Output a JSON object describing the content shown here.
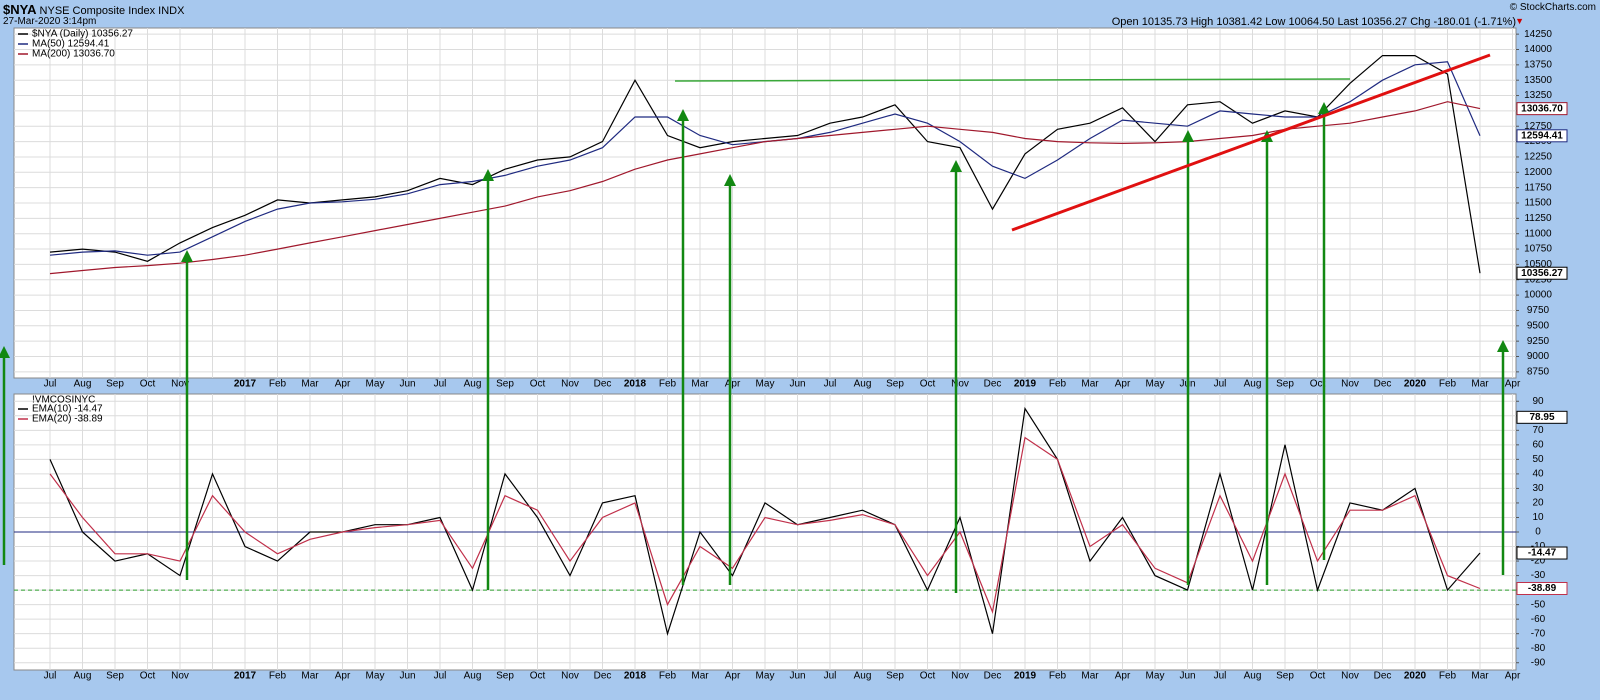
{
  "header": {
    "symbol": "$NYA",
    "name": "NYSE Composite Index INDX",
    "timestamp": "27-Mar-2020 3:14pm",
    "quote": "Open 10135.73 High 10381.42 Low 10064.50 Last 10356.27 Chg -180.01 (-1.71%)",
    "copyright": "© StockCharts.com"
  },
  "chart_data": [
    {
      "type": "line",
      "categories": [
        "Jul",
        "Aug",
        "Sep",
        "Oct",
        "Nov",
        null,
        "2017",
        "Feb",
        "Mar",
        "Apr",
        "May",
        "Jun",
        "Jul",
        "Aug",
        "Sep",
        "Oct",
        "Nov",
        "Dec",
        "2018",
        "Feb",
        "Mar",
        "Apr",
        "May",
        "Jun",
        "Jul",
        "Aug",
        "Sep",
        "Oct",
        "Nov",
        "Dec",
        "2019",
        "Feb",
        "Mar",
        "Apr",
        "May",
        "Jun",
        "Jul",
        "Aug",
        "Sep",
        "Oct",
        "Nov",
        "Dec",
        "2020",
        "Feb",
        "Mar",
        "Apr"
      ],
      "series": [
        {
          "name": "$NYA (Daily) 10356.27",
          "color": "#000000",
          "end_label": {
            "value": 10356.27,
            "label": "10356.27"
          },
          "values": [
            10700,
            10750,
            10700,
            10550,
            10850,
            11100,
            11300,
            11550,
            11500,
            11550,
            11600,
            11700,
            11900,
            11800,
            12050,
            12200,
            12250,
            12500,
            13500,
            12600,
            12400,
            12500,
            12550,
            12600,
            12800,
            12900,
            13100,
            12500,
            12400,
            11400,
            12300,
            12700,
            12800,
            13050,
            12500,
            13100,
            13150,
            12800,
            13000,
            12900,
            13450,
            13900,
            13900,
            13600,
            10356.27,
            null
          ]
        },
        {
          "name": "MA(50) 12594.41",
          "color": "#1f2a80",
          "end_label": {
            "value": 12594.41,
            "label": "12594.41"
          },
          "values": [
            10650,
            10700,
            10720,
            10650,
            10700,
            10950,
            11200,
            11400,
            11500,
            11520,
            11560,
            11650,
            11800,
            11850,
            11950,
            12100,
            12200,
            12400,
            12900,
            12900,
            12600,
            12450,
            12500,
            12550,
            12650,
            12800,
            12950,
            12800,
            12500,
            12100,
            11900,
            12200,
            12550,
            12850,
            12800,
            12750,
            13000,
            12950,
            12900,
            12900,
            13150,
            13500,
            13750,
            13800,
            12594.41,
            null
          ]
        },
        {
          "name": "MA(200) 13036.70",
          "color": "#a0182c",
          "end_label": {
            "value": 13036.7,
            "label": "13036.70"
          },
          "values": [
            10350,
            10400,
            10450,
            10480,
            10520,
            10580,
            10650,
            10750,
            10850,
            10950,
            11050,
            11150,
            11250,
            11350,
            11450,
            11600,
            11700,
            11850,
            12050,
            12200,
            12300,
            12400,
            12500,
            12550,
            12600,
            12650,
            12700,
            12750,
            12700,
            12650,
            12550,
            12500,
            12480,
            12470,
            12480,
            12500,
            12550,
            12600,
            12700,
            12750,
            12800,
            12900,
            13000,
            13150,
            13036.7,
            null
          ]
        }
      ],
      "ylim": [
        8650,
        14350
      ],
      "yticks": [
        8750,
        9000,
        9250,
        9500,
        9750,
        10000,
        10250,
        10500,
        10750,
        11000,
        11250,
        11500,
        11750,
        12000,
        12250,
        12500,
        12750,
        13000,
        13250,
        13500,
        13750,
        14000,
        14250
      ],
      "grid": true
    },
    {
      "type": "line",
      "title": "!VMCOSINYC",
      "categories": [
        "Jul",
        "Aug",
        "Sep",
        "Oct",
        "Nov",
        null,
        "2017",
        "Feb",
        "Mar",
        "Apr",
        "May",
        "Jun",
        "Jul",
        "Aug",
        "Sep",
        "Oct",
        "Nov",
        "Dec",
        "2018",
        "Feb",
        "Mar",
        "Apr",
        "May",
        "Jun",
        "Jul",
        "Aug",
        "Sep",
        "Oct",
        "Nov",
        "Dec",
        "2019",
        "Feb",
        "Mar",
        "Apr",
        "May",
        "Jun",
        "Jul",
        "Aug",
        "Sep",
        "Oct",
        "Nov",
        "Dec",
        "2020",
        "Feb",
        "Mar",
        "Apr"
      ],
      "series": [
        {
          "name": "EMA(10) -14.47",
          "color": "#000000",
          "end_label": {
            "value": -14.47,
            "label": "-14.47"
          },
          "values": [
            50,
            0,
            -20,
            -15,
            -30,
            40,
            -10,
            -20,
            0,
            0,
            5,
            5,
            10,
            -40,
            40,
            10,
            -30,
            20,
            25,
            -70,
            0,
            -30,
            20,
            5,
            10,
            15,
            5,
            -40,
            10,
            -70,
            85,
            50,
            -20,
            10,
            -30,
            -40,
            40,
            -40,
            60,
            -40,
            20,
            15,
            30,
            -40,
            -14.47,
            null
          ]
        },
        {
          "name": "EMA(20) -38.89",
          "color": "#c0304a",
          "end_label": {
            "value": -38.89,
            "label": "-38.89"
          },
          "values": [
            40,
            10,
            -15,
            -15,
            -20,
            25,
            0,
            -15,
            -5,
            0,
            3,
            5,
            8,
            -25,
            25,
            15,
            -20,
            10,
            20,
            -50,
            -10,
            -25,
            10,
            5,
            8,
            12,
            5,
            -30,
            0,
            -55,
            65,
            50,
            -10,
            5,
            -25,
            -35,
            25,
            -20,
            40,
            -20,
            15,
            15,
            25,
            -30,
            -38.89,
            null
          ]
        }
      ],
      "last_value_tag": 78.95,
      "reference_lines": [
        {
          "value": 0,
          "color": "#1f2a80",
          "dashed": false
        },
        {
          "value": -40,
          "color": "#2ca02c",
          "dashed": true
        }
      ],
      "ylim": [
        -95,
        95
      ],
      "yticks": [
        -90,
        -80,
        -70,
        -60,
        -50,
        -40,
        -30,
        -20,
        -10,
        0,
        10,
        20,
        30,
        40,
        50,
        60,
        70,
        80,
        90
      ],
      "grid": true
    }
  ]
}
